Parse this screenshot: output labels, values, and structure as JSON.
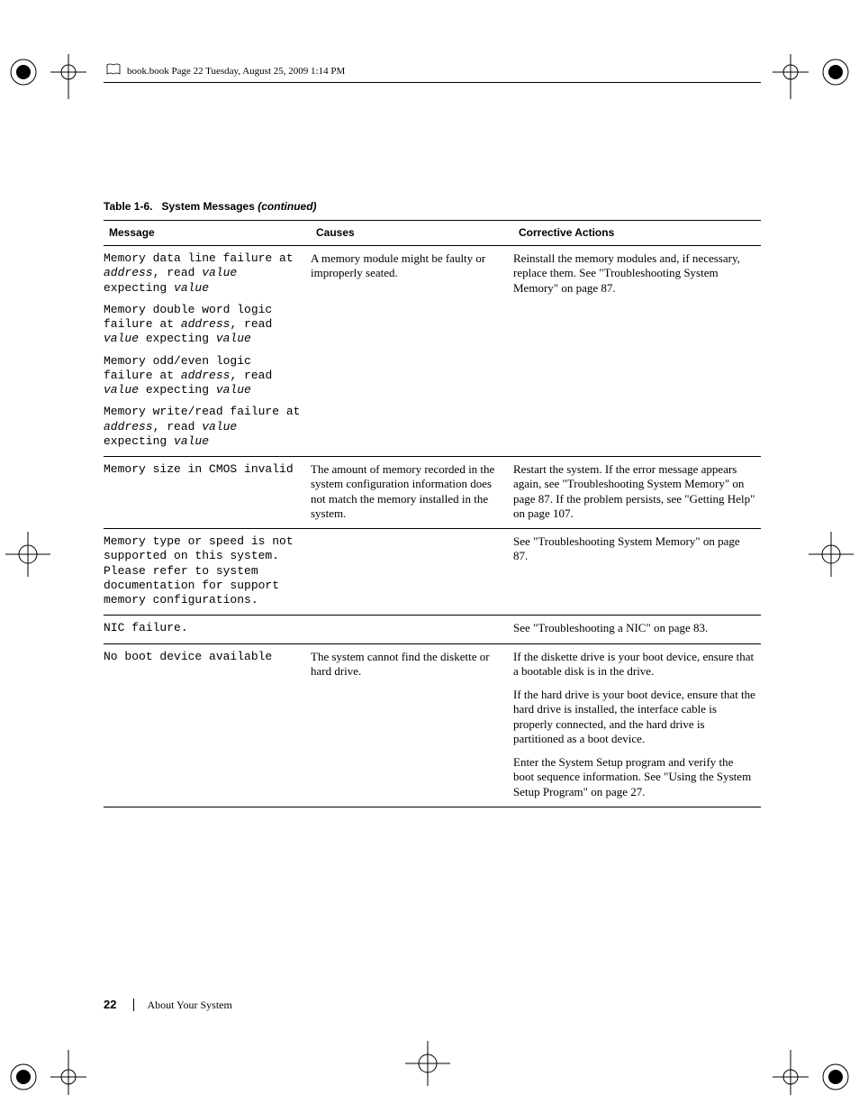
{
  "running_head": "book.book  Page 22  Tuesday, August 25, 2009  1:14 PM",
  "table_caption_prefix": "Table 1-6.",
  "table_caption_title": "System Messages",
  "table_caption_suffix": "(continued)",
  "columns": {
    "message": "Message",
    "causes": "Causes",
    "actions": "Corrective Actions"
  },
  "rows": [
    {
      "messages_html": [
        "Memory data line failure at <span class=\"ital\">address</span>, read <span class=\"ital\">value</span> expecting <span class=\"ital\">value</span>",
        "Memory double word logic failure at <span class=\"ital\">address</span>, read <span class=\"ital\">value</span> expecting <span class=\"ital\">value</span>",
        "Memory odd/even logic failure at <span class=\"ital\">address</span>, read <span class=\"ital\">value</span> expecting <span class=\"ital\">value</span>",
        "Memory write/read failure at <span class=\"ital\">address</span>, read <span class=\"ital\">value</span> expecting <span class=\"ital\">value</span>"
      ],
      "cause": "A memory module might be faulty or improperly seated.",
      "actions": [
        "Reinstall the memory modules and, if necessary, replace them. See \"Troubleshooting System Memory\" on page 87."
      ]
    },
    {
      "messages_html": [
        "Memory size in CMOS invalid"
      ],
      "cause": "The amount of memory recorded in the system configuration information does not match the memory installed in the system.",
      "actions": [
        "Restart the system. If the error message appears again, see \"Troubleshooting System Memory\" on page 87. If the problem persists, see \"Getting Help\" on page 107."
      ]
    },
    {
      "messages_html": [
        "Memory type or speed is not supported on this system. Please refer to system documentation for support memory configurations."
      ],
      "cause": "",
      "actions": [
        "See \"Troubleshooting System Memory\" on page 87."
      ]
    },
    {
      "messages_html": [
        "NIC failure."
      ],
      "cause": "",
      "actions": [
        "See \"Troubleshooting a NIC\" on page 83."
      ]
    },
    {
      "messages_html": [
        "No boot device available"
      ],
      "cause": "The system cannot find the diskette or hard drive.",
      "actions": [
        "If the diskette drive is your boot device, ensure that a bootable disk is in the drive.",
        "If the hard drive is your boot device, ensure that the hard drive is installed, the interface cable is properly connected, and the hard drive is partitioned as a boot device.",
        "Enter the System Setup program and verify the boot sequence information. See \"Using the System Setup Program\" on page 27."
      ]
    }
  ],
  "footer": {
    "page_number": "22",
    "section": "About Your System"
  },
  "colors": {
    "text": "#000000",
    "background": "#ffffff",
    "rule": "#000000"
  }
}
